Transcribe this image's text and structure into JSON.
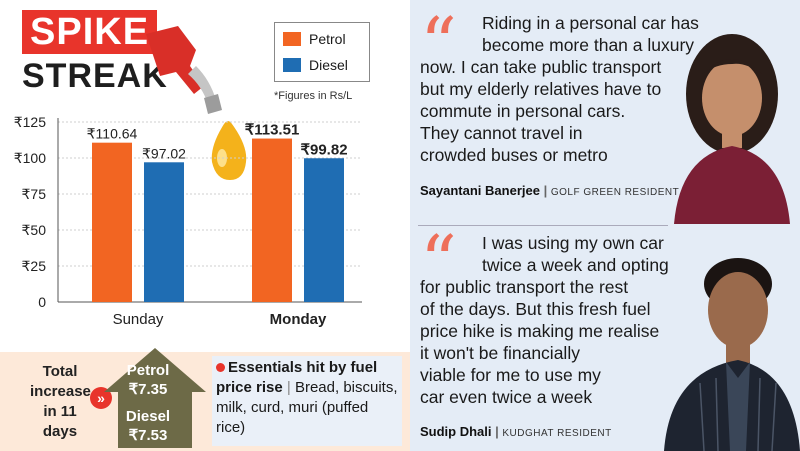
{
  "header": {
    "title_line1": "SPIKE",
    "title_line2": "STREAK"
  },
  "legend": {
    "items": [
      {
        "label": "Petrol",
        "color": "#f26522"
      },
      {
        "label": "Diesel",
        "color": "#1f6db3"
      }
    ],
    "footnote": "*Figures in Rs/L"
  },
  "chart_data": {
    "type": "bar",
    "categories": [
      "Sunday",
      "Monday"
    ],
    "series": [
      {
        "name": "Petrol",
        "values": [
          110.64,
          113.51
        ],
        "labels": [
          "₹110.64",
          "₹113.51"
        ],
        "color": "#f26522"
      },
      {
        "name": "Diesel",
        "values": [
          97.02,
          99.82
        ],
        "labels": [
          "₹97.02",
          "₹99.82"
        ],
        "color": "#1f6db3"
      }
    ],
    "yticks": [
      0,
      25,
      50,
      75,
      100,
      125
    ],
    "ytick_labels": [
      "0",
      "₹25",
      "₹50",
      "₹75",
      "₹100",
      "₹125"
    ],
    "ylim": [
      0,
      125
    ]
  },
  "increase": {
    "label": "Total increase in 11 days",
    "petrol_label": "Petrol",
    "petrol_value": "₹7.35",
    "diesel_label": "Diesel",
    "diesel_value": "₹7.53"
  },
  "essentials": {
    "heading": "Essentials hit by fuel price rise",
    "items": "Bread, biscuits, milk, curd, muri (puffed rice)"
  },
  "quotes": [
    {
      "text_lines": [
        "Riding in a personal car has",
        "become more than a luxury",
        "now. I can take public transport",
        "but my elderly relatives have to",
        "commute in personal cars.",
        "They cannot travel in",
        "crowded buses or metro"
      ],
      "name": "Sayantani Banerjee",
      "role": "GOLF GREEN RESIDENT"
    },
    {
      "text_lines": [
        "I was using my own car",
        "twice a week and opting",
        "for public transport the rest",
        "of the days. But this fresh fuel",
        "price hike is making me realise",
        "it won't be financially",
        "viable for me to use my",
        "car even twice a week"
      ],
      "name": "Sudip Dhali",
      "role": "KUDGHAT RESIDENT"
    }
  ]
}
